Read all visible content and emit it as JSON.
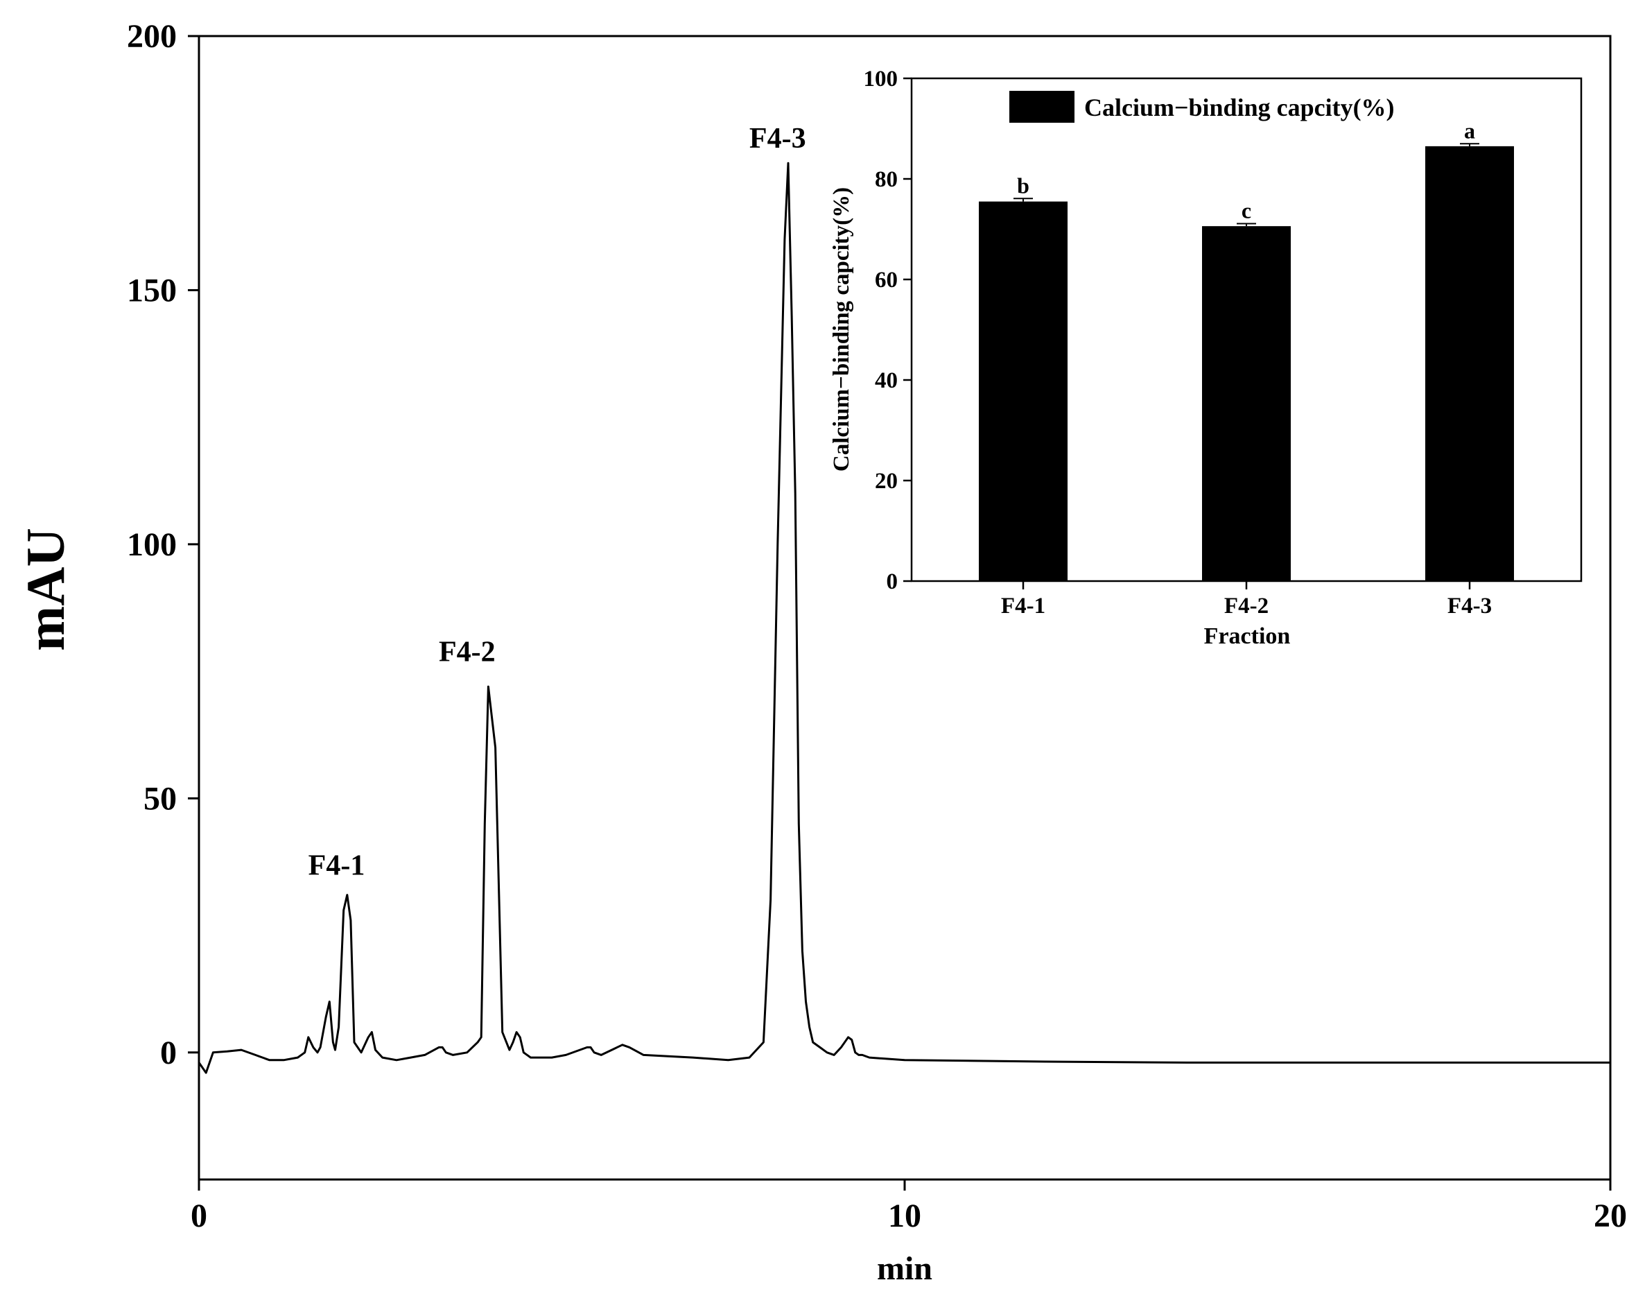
{
  "chart_data": [
    {
      "type": "line",
      "xlabel": "min",
      "ylabel": "mAU",
      "xlim": [
        0,
        20
      ],
      "ylim": [
        -25,
        200
      ],
      "xticks": [
        0,
        10,
        20
      ],
      "yticks": [
        0,
        50,
        100,
        150,
        200
      ],
      "grid": false,
      "series": [
        {
          "x": [
            0,
            0.1,
            0.2,
            0.4,
            0.6,
            0.8,
            1.0,
            1.2,
            1.4,
            1.5,
            1.55,
            1.62,
            1.68,
            1.72,
            1.8,
            1.85,
            1.9,
            1.93,
            1.98,
            2.05,
            2.1,
            2.15,
            2.2,
            2.3,
            2.4,
            2.45,
            2.5,
            2.6,
            2.8,
            3.0,
            3.2,
            3.4,
            3.45,
            3.5,
            3.6,
            3.8,
            3.95,
            4.0,
            4.05,
            4.1,
            4.2,
            4.3,
            4.4,
            4.45,
            4.5,
            4.55,
            4.6,
            4.7,
            4.8,
            5.0,
            5.2,
            5.5,
            5.55,
            5.6,
            5.7,
            6.0,
            6.1,
            6.3,
            7.0,
            7.5,
            7.8,
            8.0,
            8.1,
            8.2,
            8.3,
            8.35,
            8.4,
            8.45,
            8.5,
            8.55,
            8.6,
            8.65,
            8.7,
            8.8,
            8.9,
            9.0,
            9.1,
            9.2,
            9.25,
            9.3,
            9.35,
            9.4,
            9.5,
            10,
            12,
            14,
            16,
            18,
            20
          ],
          "y": [
            -2,
            -4,
            0,
            0.2,
            0.5,
            -0.5,
            -1.5,
            -1.5,
            -1,
            0,
            3,
            1,
            0,
            1,
            7,
            10,
            2,
            0.5,
            5,
            28,
            31,
            26,
            2,
            0,
            3,
            4,
            0.5,
            -1,
            -1.5,
            -1,
            -0.5,
            1,
            1,
            0,
            -0.5,
            0,
            2,
            3,
            45,
            72,
            60,
            4,
            0.5,
            2,
            4,
            3,
            0,
            -1,
            -1,
            -1,
            -0.5,
            1,
            1,
            0,
            -0.5,
            1.5,
            1,
            -0.5,
            -1,
            -1.5,
            -1,
            2,
            30,
            100,
            160,
            175,
            145,
            110,
            45,
            20,
            10,
            5,
            2,
            1,
            0,
            -0.5,
            1,
            3,
            2.5,
            0,
            -0.5,
            -0.5,
            -1,
            -1.5,
            -1.8,
            -2,
            -2,
            -2,
            -2
          ]
        }
      ],
      "annotations": [
        {
          "text": "F4-1",
          "x": 1.95,
          "y": 35
        },
        {
          "text": "F4-2",
          "x": 3.8,
          "y": 77
        },
        {
          "text": "F4-3",
          "x": 8.2,
          "y": 178
        }
      ]
    },
    {
      "type": "bar",
      "categories": [
        "F4-1",
        "F4-2",
        "F4-3"
      ],
      "xlabel": "Fraction",
      "ylabel": "Calcium−binding capcity(%)",
      "ylim": [
        0,
        100
      ],
      "yticks": [
        0,
        20,
        40,
        60,
        80,
        100
      ],
      "legend": "top-center",
      "series": [
        {
          "name": "Calcium−binding capcity(%)",
          "values": [
            75.5,
            70.6,
            86.5
          ],
          "errors": [
            0.6,
            0.5,
            0.5
          ],
          "letters": [
            "b",
            "c",
            "a"
          ]
        }
      ]
    }
  ]
}
